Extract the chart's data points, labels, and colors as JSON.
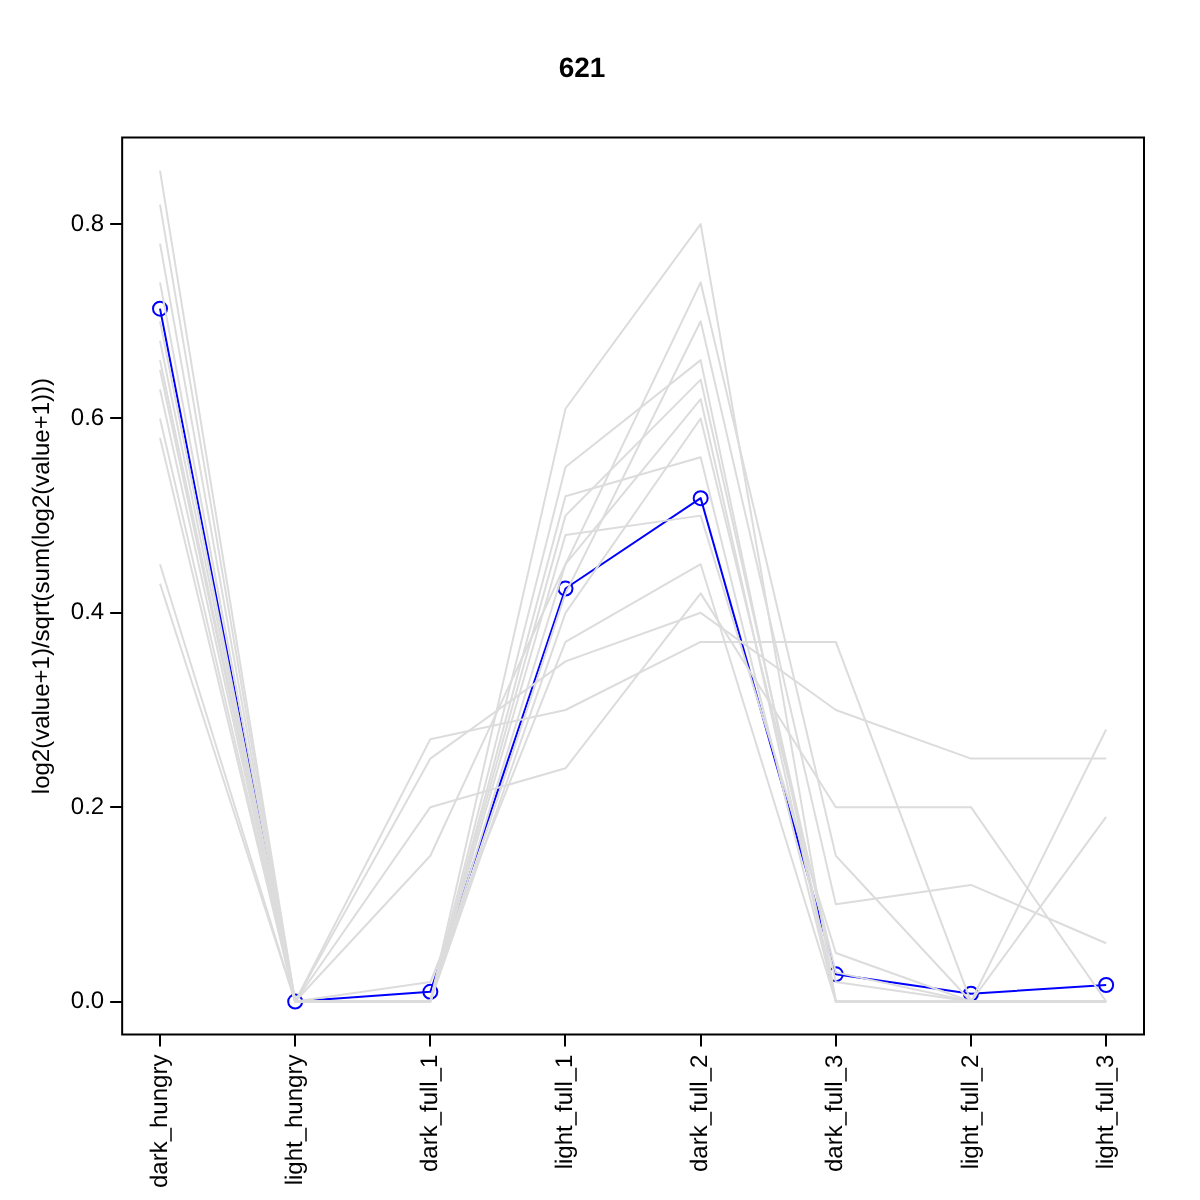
{
  "chart_data": {
    "type": "line",
    "title": "621",
    "ylabel": "log2(value+1)/sqrt(sum(log2(value+1)))",
    "categories": [
      "dark_hungry",
      "light_hungry",
      "dark_full_1",
      "light_full_1",
      "dark_full_2",
      "dark_full_3",
      "light_full_2",
      "light_full_3"
    ],
    "ylim": [
      -0.034,
      0.889
    ],
    "yticks": [
      {
        "value": 0,
        "label": "0.0"
      },
      0.2,
      0.4,
      0.6,
      0.8
    ],
    "grid": false,
    "legend": false,
    "line_style": "solid",
    "marker": "circle",
    "series": [
      {
        "color": "#dcdcdc",
        "marker": "none",
        "values": [
          0.855,
          0,
          0,
          0.55,
          0.66,
          0,
          0,
          0
        ]
      },
      {
        "color": "#dcdcdc",
        "marker": "none",
        "values": [
          0.82,
          0,
          0,
          0.5,
          0.64,
          0.02,
          0,
          0
        ]
      },
      {
        "color": "#dcdcdc",
        "marker": "none",
        "values": [
          0.78,
          0,
          0,
          0.45,
          0.62,
          0,
          0,
          0
        ]
      },
      {
        "color": "#dcdcdc",
        "marker": "none",
        "values": [
          0.74,
          0,
          0,
          0.4,
          0.6,
          0.03,
          0,
          0
        ]
      },
      {
        "color": "#dcdcdc",
        "marker": "none",
        "values": [
          0.7,
          0,
          0,
          0.52,
          0.56,
          0,
          0,
          0
        ]
      },
      {
        "color": "#dcdcdc",
        "marker": "none",
        "values": [
          0.66,
          0,
          0,
          0.48,
          0.5,
          0.05,
          0,
          0
        ]
      },
      {
        "color": "#dcdcdc",
        "marker": "none",
        "values": [
          0.63,
          0,
          0.02,
          0.37,
          0.45,
          0,
          0,
          0
        ]
      },
      {
        "color": "#dcdcdc",
        "marker": "none",
        "values": [
          0.58,
          0,
          0,
          0.61,
          0.8,
          0,
          0,
          0
        ]
      },
      {
        "color": "#dcdcdc",
        "marker": "none",
        "values": [
          0.45,
          0,
          0.27,
          0.3,
          0.37,
          0.37,
          0,
          0.28
        ]
      },
      {
        "color": "#dcdcdc",
        "marker": "none",
        "values": [
          0.43,
          0,
          0.25,
          0.35,
          0.4,
          0.3,
          0.25,
          0.25
        ]
      },
      {
        "color": "#dcdcdc",
        "marker": "none",
        "values": [
          0.6,
          0,
          0.2,
          0.24,
          0.42,
          0.2,
          0.2,
          0
        ]
      },
      {
        "color": "#dcdcdc",
        "marker": "none",
        "values": [
          0.65,
          0,
          0.15,
          0.45,
          0.74,
          0.15,
          0,
          0.19
        ]
      },
      {
        "color": "#dcdcdc",
        "marker": "none",
        "values": [
          0.68,
          0,
          0,
          0.42,
          0.7,
          0.1,
          0.12,
          0.06
        ]
      },
      {
        "color": "#0000ff",
        "values": [
          0.713,
          0,
          0.01,
          0.425,
          0.518,
          0.028,
          0.008,
          0.017
        ]
      }
    ]
  }
}
